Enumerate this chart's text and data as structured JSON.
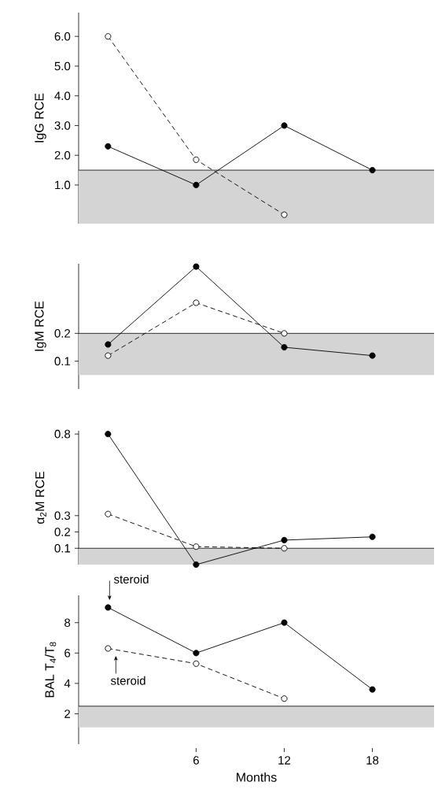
{
  "chart_data": [
    {
      "type": "line",
      "ylabel": "IgG RCE",
      "x": [
        0,
        6,
        12,
        18
      ],
      "xlim": [
        -2,
        22.2
      ],
      "ylim": [
        -0.3,
        6.8
      ],
      "yticks": [
        {
          "value": 1,
          "label": "1.0"
        },
        {
          "value": 2,
          "label": "2.0"
        },
        {
          "value": 3,
          "label": "3.0"
        },
        {
          "value": 4,
          "label": "4.0"
        },
        {
          "value": 5,
          "label": "5.0"
        },
        {
          "value": 6,
          "label": "6.0"
        }
      ],
      "tick_labels": "y",
      "marker": "circle",
      "series": [
        {
          "color": "#000000",
          "line_style": "solid",
          "values": [
            2.3,
            1.0,
            3.0,
            1.5
          ]
        },
        {
          "color": "#000000",
          "line_style": "dashed",
          "values": [
            6.0,
            1.85,
            0.0,
            null
          ]
        }
      ],
      "bands": [
        {
          "axis": "y",
          "from": -0.3,
          "to": 1.5,
          "color": "#d4d4d4"
        }
      ],
      "ref_lines": [
        {
          "axis": "y",
          "value": 1.5
        }
      ]
    },
    {
      "type": "line",
      "ylabel": "IgM RCE",
      "x": [
        0,
        6,
        12,
        18
      ],
      "xlim": [
        -2,
        22.2
      ],
      "ylim": [
        0,
        0.45
      ],
      "yticks": [
        0.1,
        0.2
      ],
      "tick_labels": "y",
      "marker": "circle",
      "series": [
        {
          "color": "#000000",
          "line_style": "solid",
          "values": [
            0.16,
            0.44,
            0.15,
            0.12
          ]
        },
        {
          "color": "#000000",
          "line_style": "dashed",
          "values": [
            0.12,
            0.31,
            0.2,
            null
          ]
        }
      ],
      "bands": [
        {
          "axis": "y",
          "from": 0.05,
          "to": 0.2,
          "color": "#d4d4d4"
        }
      ],
      "ref_lines": [
        {
          "axis": "y",
          "value": 0.2
        }
      ]
    },
    {
      "type": "line",
      "ylabel": "α$_{2}$M RCE",
      "x": [
        0,
        6,
        12,
        18
      ],
      "xlim": [
        -2,
        22.2
      ],
      "ylim": [
        0,
        0.82
      ],
      "yticks": [
        0.1,
        0.2,
        0.3,
        0.8
      ],
      "tick_labels": "y",
      "marker": "circle",
      "series": [
        {
          "color": "#000000",
          "line_style": "solid",
          "values": [
            0.8,
            0.0,
            0.15,
            0.17
          ]
        },
        {
          "color": "#000000",
          "line_style": "dashed",
          "values": [
            0.31,
            0.11,
            0.1,
            null
          ]
        }
      ],
      "bands": [
        {
          "axis": "y",
          "from": 0,
          "to": 0.1,
          "color": "#d4d4d4"
        }
      ],
      "ref_lines": [
        {
          "axis": "y",
          "value": 0.1
        }
      ]
    },
    {
      "type": "line",
      "ylabel": "BAL T$_{4}$/T$_{8}$",
      "xlabel": "Months",
      "x": [
        0,
        6,
        12,
        18
      ],
      "xlim": [
        -2,
        22.2
      ],
      "xticks": [
        6,
        12,
        18
      ],
      "ylim": [
        0,
        9.8
      ],
      "yticks": [
        2,
        4,
        6,
        8
      ],
      "marker": "circle",
      "series": [
        {
          "color": "#000000",
          "line_style": "solid",
          "values": [
            9.0,
            6.0,
            8.0,
            3.6
          ]
        },
        {
          "color": "#000000",
          "line_style": "dashed",
          "values": [
            6.3,
            5.3,
            3.0,
            null
          ]
        }
      ],
      "bands": [
        {
          "axis": "y",
          "from": 1.1,
          "to": 2.5,
          "color": "#d4d4d4"
        }
      ],
      "ref_lines": [
        {
          "axis": "y",
          "value": 2.5
        }
      ],
      "annotations": [
        {
          "text": "steroid",
          "x": 0,
          "y": 9.0
        },
        {
          "text": "steroid",
          "x": 0,
          "y": 6.3
        }
      ]
    }
  ]
}
